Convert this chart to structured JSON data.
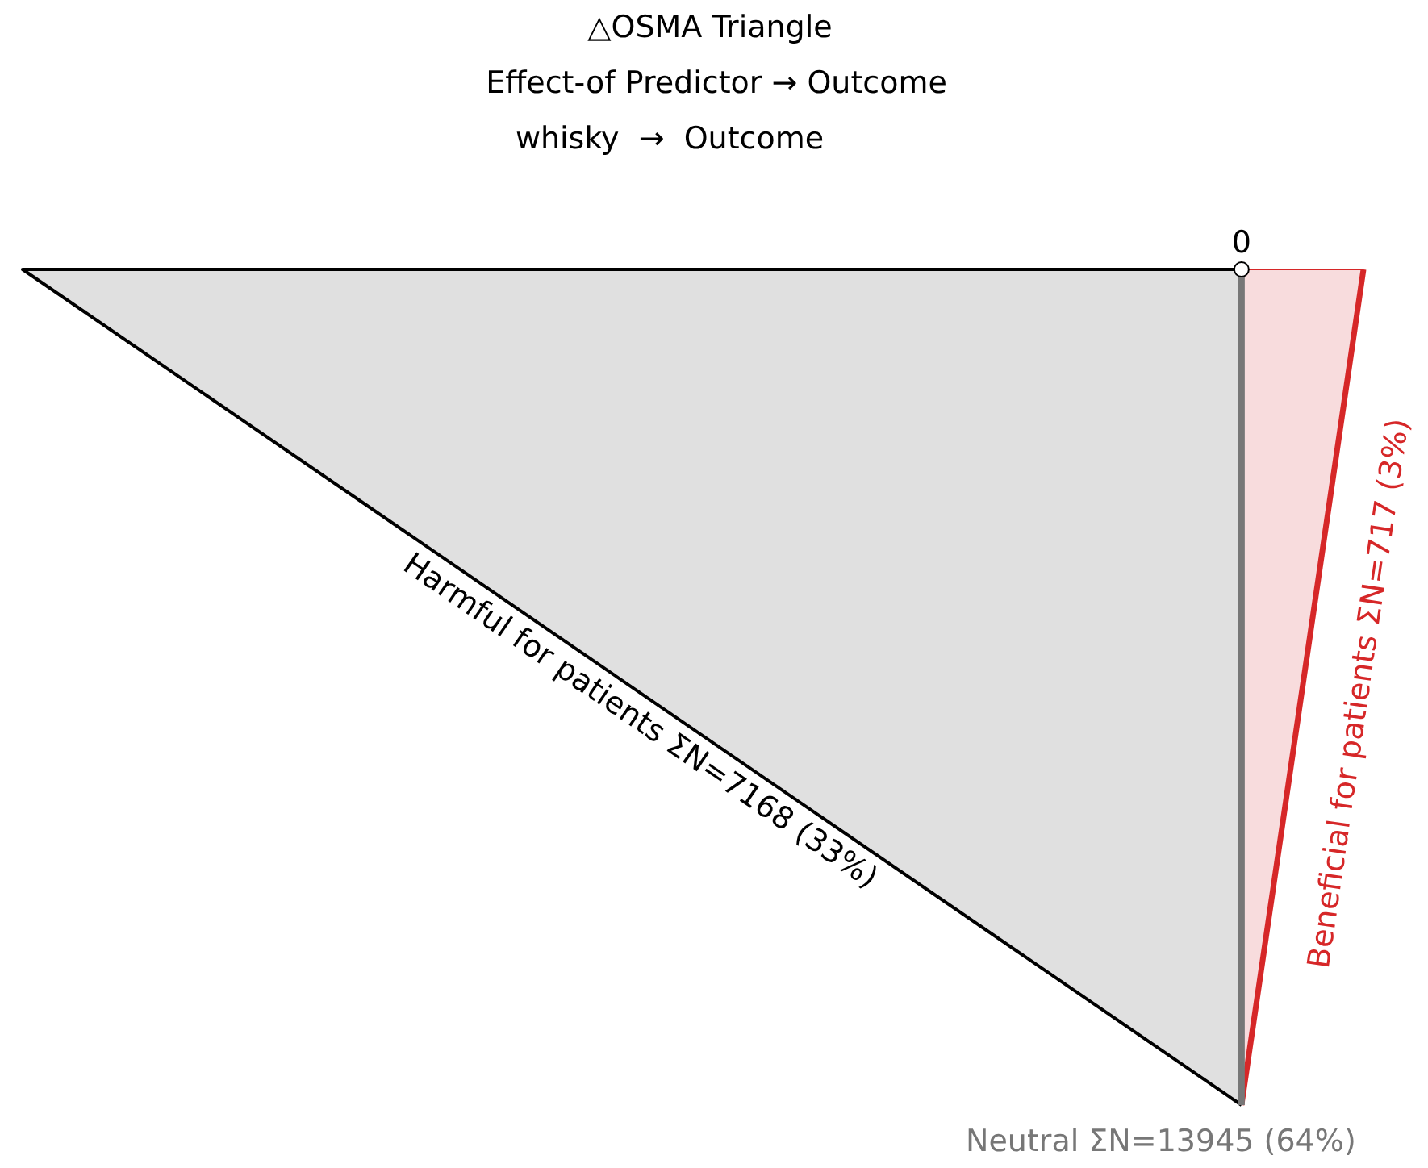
{
  "chart_data": {
    "type": "other",
    "title": "△OSMA Triangle",
    "subtitle": "Effect-of Predictor → Outcome",
    "annotations": [
      "whisky  →  Outcome",
      "0"
    ],
    "categories": [
      "Harmful for patients",
      "Beneficial for patients",
      "Neutral"
    ],
    "values": [
      7168,
      717,
      13945
    ],
    "value_labels": [
      "ΣN=7168 (33%)",
      "ΣN=717 (3%)",
      "ΣN=13945 (64%)"
    ],
    "colors": [
      "#000000",
      "#d62728",
      "#777777"
    ]
  }
}
